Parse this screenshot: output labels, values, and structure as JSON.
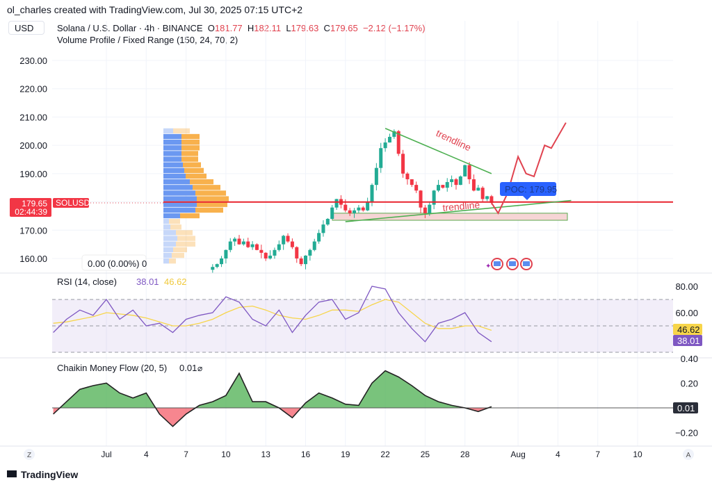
{
  "credit": "ol_charles created with TradingView.com, Jul 30, 2025 07:15 UTC+2",
  "currency_button": "USD",
  "symbol_line": {
    "name": "Solana / U.S. Dollar · 4h · BINANCE",
    "o_label": "O",
    "o": "181.77",
    "h_label": "H",
    "h": "182.11",
    "l_label": "L",
    "l": "179.63",
    "c_label": "C",
    "c": "179.65",
    "change": "−2.12 (−1.17%)"
  },
  "volume_profile_label": "Volume Profile / Fixed Range (150, 24, 70, 2)",
  "price_tag": {
    "price": "179.65",
    "countdown": "02:44:39",
    "symbol": "SOLUSD"
  },
  "volume_legend": "0.00 (0.00%) 0",
  "annotations": {
    "trendline_upper": "trendline",
    "trendline_lower": "trendline",
    "poc": "POC: 179.95"
  },
  "rsi": {
    "label": "RSI (14, close)",
    "value": "38.01",
    "ma_value": "46.62"
  },
  "cmf": {
    "label": "Chaikin Money Flow (20, 5)",
    "value": "0.01",
    "icon": "hidden-eye-icon"
  },
  "x_axis": {
    "left_button": "Z",
    "right_button": "A"
  },
  "footer_logo": "TradingView",
  "colors": {
    "up": "#22ab94",
    "down": "#f23645",
    "rsi": "#7e57c2",
    "rsi_ma": "#f7d54a",
    "vp_up": "#5b8def",
    "vp_down": "#f7a93a",
    "trendline": "#4caf50",
    "projection": "#e0424f",
    "poc_box": "#2962ff"
  },
  "chart_data": [
    {
      "type": "line",
      "title": "Solana / U.S. Dollar · 4h · BINANCE",
      "x_start": "Jul 9",
      "x_step": "8h",
      "series": [
        {
          "values": [
            157,
            158,
            160,
            163,
            166,
            167,
            165,
            166,
            164,
            165,
            163,
            162,
            160,
            161,
            163,
            165,
            168,
            166,
            164,
            160,
            158,
            161,
            163,
            166,
            169,
            172,
            174,
            178,
            181,
            179,
            177,
            176,
            177,
            178,
            177,
            180,
            186,
            192,
            199,
            201,
            203,
            205,
            197,
            190,
            188,
            186,
            184,
            178,
            176,
            179,
            184,
            186,
            185,
            187,
            188,
            186,
            189,
            193,
            188,
            184,
            185,
            181,
            182,
            179.65
          ]
        }
      ],
      "y_ticks": [
        "230.00",
        "220.00",
        "210.00",
        "200.00",
        "190.00",
        "180.00",
        "170.00",
        "160.00"
      ],
      "ylim": [
        156,
        234
      ],
      "x_ticks": [
        "Jul",
        "4",
        "7",
        "10",
        "13",
        "16",
        "19",
        "22",
        "25",
        "28",
        "Aug",
        "4",
        "7",
        "10"
      ],
      "volume_profile": {
        "price_rows_top": 206,
        "row_size": 2,
        "up": [
          14,
          26,
          26,
          26,
          26,
          26,
          28,
          30,
          32,
          38,
          42,
          46,
          48,
          48,
          46,
          24,
          8,
          10,
          18,
          20,
          18,
          14,
          12,
          8
        ],
        "down": [
          24,
          26,
          26,
          26,
          24,
          24,
          26,
          28,
          30,
          34,
          40,
          44,
          46,
          44,
          40,
          28,
          16,
          16,
          24,
          26,
          28,
          20,
          18,
          10
        ],
        "value_area_rows": 16
      },
      "trendlines": [
        {
          "from": [
            "Jul 22",
            206
          ],
          "to": [
            "Jul 30",
            190
          ]
        },
        {
          "from": [
            "Jul 19",
            173
          ],
          "to": [
            "Aug 5",
            180.5
          ]
        }
      ],
      "support_zone": [
        173.5,
        176
      ],
      "poc": 179.95,
      "projection": [
        [
          "Jul 30",
          179.65
        ],
        [
          "Jul 30.5",
          176
        ],
        [
          "Jul 31.2",
          183
        ],
        [
          "Aug 1",
          196
        ],
        [
          "Aug 1.6",
          190
        ],
        [
          "Aug 2.2",
          189
        ],
        [
          "Aug 3",
          200
        ],
        [
          "Aug 3.5",
          199
        ],
        [
          "Aug 4.6",
          208
        ]
      ]
    },
    {
      "type": "line",
      "title": "RSI (14, close)",
      "x_start": "Jun 27",
      "x_step": "1d",
      "y_ticks": [
        "80.00",
        "60.00"
      ],
      "ylim": [
        22,
        90
      ],
      "bands": [
        70,
        50,
        30
      ],
      "series": [
        {
          "name": "RSI",
          "values": [
            45,
            55,
            62,
            58,
            70,
            55,
            62,
            50,
            52,
            45,
            55,
            58,
            60,
            72,
            68,
            55,
            50,
            62,
            45,
            58,
            68,
            70,
            55,
            60,
            80,
            78,
            60,
            48,
            38,
            52,
            55,
            60,
            45,
            38.01
          ]
        },
        {
          "name": "MA",
          "values": [
            52,
            53,
            55,
            57,
            60,
            59,
            58,
            56,
            53,
            50,
            50,
            52,
            55,
            60,
            64,
            65,
            62,
            58,
            56,
            55,
            58,
            62,
            62,
            61,
            66,
            70,
            68,
            60,
            52,
            48,
            48,
            50,
            50,
            46.62
          ]
        }
      ]
    },
    {
      "type": "area",
      "title": "Chaikin Money Flow (20, 5)",
      "x_start": "Jun 27",
      "x_step": "1d",
      "y_ticks": [
        "0.40",
        "0.20",
        "−0.20"
      ],
      "ylim": [
        -0.3,
        0.4
      ],
      "series": [
        {
          "values": [
            -0.05,
            0.05,
            0.15,
            0.18,
            0.2,
            0.12,
            0.08,
            0.12,
            -0.05,
            -0.15,
            -0.05,
            0.02,
            0.05,
            0.1,
            0.28,
            0.05,
            0.05,
            0.0,
            -0.08,
            0.04,
            0.12,
            0.08,
            0.03,
            0.02,
            0.2,
            0.3,
            0.25,
            0.18,
            0.1,
            0.05,
            0.02,
            0.0,
            -0.03,
            0.01
          ]
        }
      ]
    }
  ]
}
